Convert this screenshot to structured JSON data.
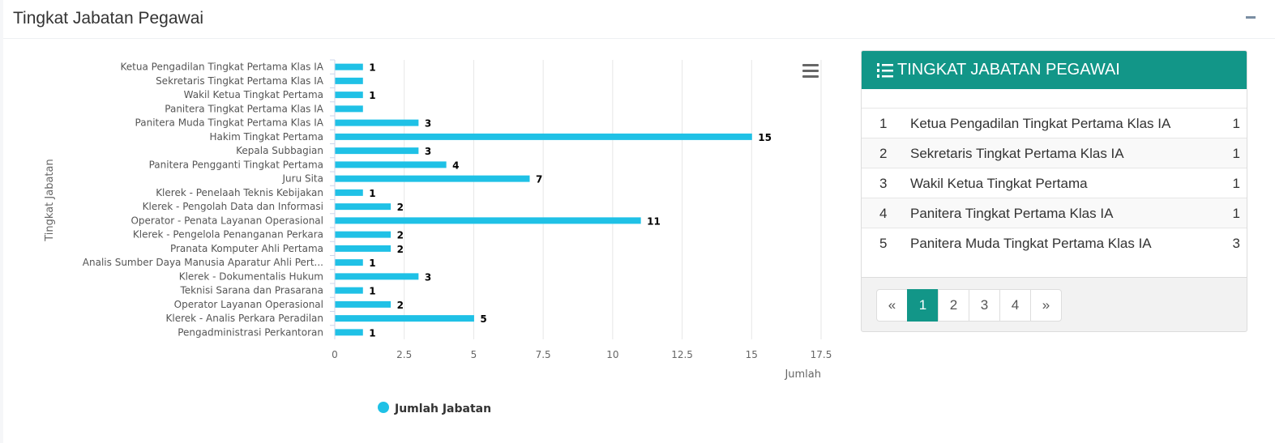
{
  "panel": {
    "title": "Tingkat Jabatan Pegawai"
  },
  "colors": {
    "bar": "#1fc1e6",
    "accent": "#129688"
  },
  "chart_data": {
    "type": "bar",
    "orientation": "horizontal",
    "categories": [
      "Ketua Pengadilan Tingkat Pertama Klas IA",
      "Sekretaris Tingkat Pertama Klas IA",
      "Wakil Ketua Tingkat Pertama",
      "Panitera Tingkat Pertama Klas IA",
      "Panitera Muda Tingkat Pertama Klas IA",
      "Hakim Tingkat Pertama",
      "Kepala Subbagian",
      "Panitera Pengganti Tingkat Pertama",
      "Juru Sita",
      "Klerek - Penelaah Teknis Kebijakan",
      "Klerek - Pengolah Data dan Informasi",
      "Operator - Penata Layanan Operasional",
      "Klerek - Pengelola Penanganan Perkara",
      "Pranata Komputer Ahli Pertama",
      "Analis Sumber Daya Manusia Aparatur Ahli Pert...",
      "Klerek - Dokumentalis Hukum",
      "Teknisi Sarana dan Prasarana",
      "Operator Layanan Operasional",
      "Klerek - Analis Perkara Peradilan",
      "Pengadministrasi Perkantoran"
    ],
    "series": [
      {
        "name": "Jumlah Jabatan",
        "values": [
          1,
          1,
          1,
          1,
          3,
          15,
          3,
          4,
          7,
          1,
          2,
          11,
          2,
          2,
          1,
          3,
          1,
          2,
          5,
          1
        ]
      }
    ],
    "data_labels": [
      "1",
      "",
      "1",
      "",
      "3",
      "15",
      "3",
      "4",
      "7",
      "1",
      "2",
      "11",
      "2",
      "2",
      "1",
      "3",
      "1",
      "2",
      "5",
      "1"
    ],
    "xticks": [
      "0",
      "2.5",
      "5",
      "7.5",
      "10",
      "12.5",
      "15",
      "17.5"
    ],
    "xlim": [
      0,
      17.5
    ],
    "xlabel": "Jumlah",
    "ylabel": "Tingkat Jabatan",
    "legend_position": "bottom",
    "grid": true
  },
  "menu_icon": "hamburger-menu-icon",
  "side": {
    "title": "TINGKAT JABATAN PEGAWAI",
    "icon": "list-ordered-icon",
    "rows": [
      {
        "no": "1",
        "label": "Ketua Pengadilan Tingkat Pertama Klas IA",
        "value": "1"
      },
      {
        "no": "2",
        "label": "Sekretaris Tingkat Pertama Klas IA",
        "value": "1"
      },
      {
        "no": "3",
        "label": "Wakil Ketua Tingkat Pertama",
        "value": "1"
      },
      {
        "no": "4",
        "label": "Panitera Tingkat Pertama Klas IA",
        "value": "1"
      },
      {
        "no": "5",
        "label": "Panitera Muda Tingkat Pertama Klas IA",
        "value": "3"
      }
    ],
    "pagination": {
      "prev": "«",
      "pages": [
        "1",
        "2",
        "3",
        "4"
      ],
      "active": "1",
      "next": "»"
    }
  }
}
